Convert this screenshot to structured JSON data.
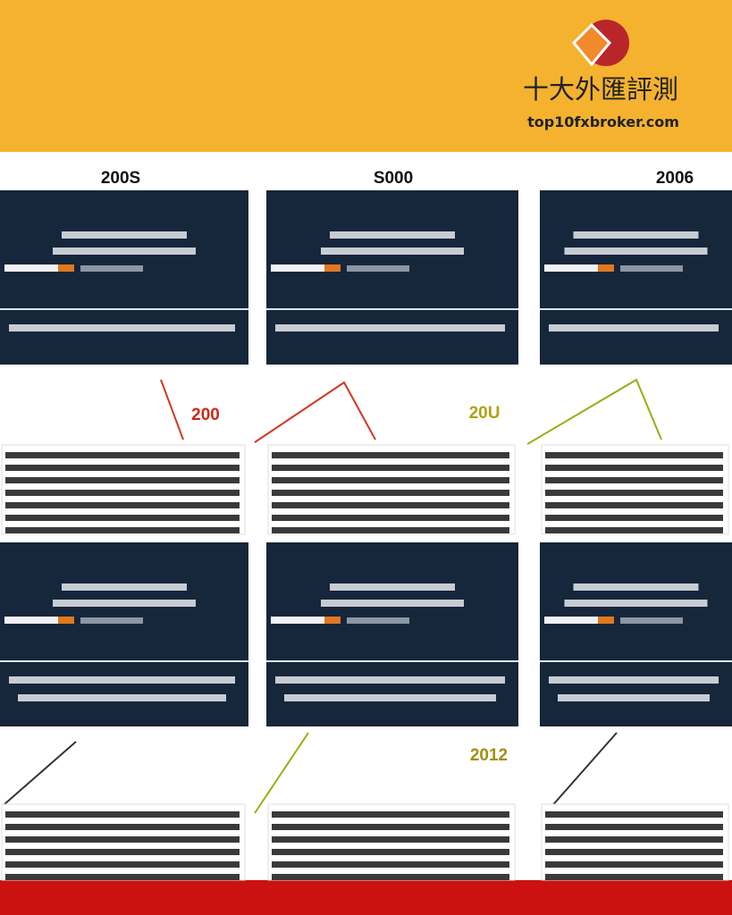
{
  "header": {
    "brand": "十大外匯評測",
    "url": "top10fxbroker.com"
  },
  "infographic": {
    "years_top": [
      "200S",
      "S000",
      "2006"
    ],
    "years_middle": [
      "200",
      "20U"
    ],
    "years_bottom": [
      "2012"
    ]
  }
}
